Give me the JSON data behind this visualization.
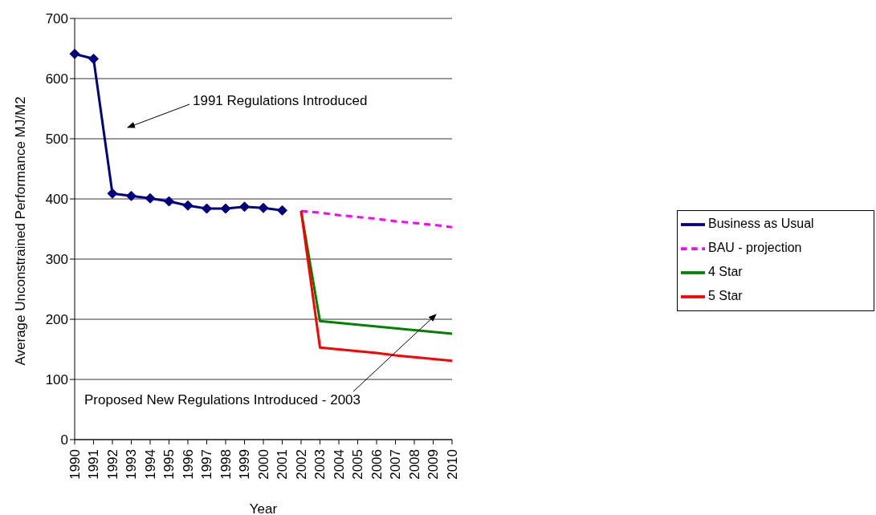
{
  "chart_data": {
    "type": "line",
    "xlabel": "Year",
    "ylabel": "Average Unconstrained Performance MJ/M2",
    "categories": [
      "1990",
      "1991",
      "1992",
      "1993",
      "1994",
      "1995",
      "1996",
      "1997",
      "1998",
      "1999",
      "2000",
      "2001",
      "2002",
      "2003",
      "2004",
      "2005",
      "2006",
      "2007",
      "2008",
      "2009",
      "2010"
    ],
    "series": [
      {
        "name": "Business as Usual",
        "color": "#000080",
        "marker": "diamond",
        "line_style": "solid",
        "values": [
          641,
          633,
          409,
          405,
          401,
          396,
          389,
          384,
          384,
          387,
          385,
          381,
          null,
          null,
          null,
          null,
          null,
          null,
          null,
          null,
          null
        ]
      },
      {
        "name": "BAU - projection",
        "color": "#ff00ff",
        "marker": "none",
        "line_style": "dashed",
        "values": [
          null,
          null,
          null,
          null,
          null,
          null,
          null,
          null,
          null,
          null,
          null,
          null,
          380,
          377,
          373,
          370,
          367,
          363,
          360,
          357,
          353
        ]
      },
      {
        "name": "4 Star",
        "color": "#008000",
        "marker": "none",
        "line_style": "solid",
        "values": [
          null,
          null,
          null,
          null,
          null,
          null,
          null,
          null,
          null,
          null,
          null,
          null,
          380,
          197,
          194,
          191,
          188,
          185,
          182,
          179,
          176
        ]
      },
      {
        "name": "5 Star",
        "color": "#ff0000",
        "marker": "none",
        "line_style": "solid",
        "values": [
          null,
          null,
          null,
          null,
          null,
          null,
          null,
          null,
          null,
          null,
          null,
          null,
          380,
          153,
          150,
          147,
          144,
          140,
          137,
          134,
          131
        ]
      }
    ],
    "ylim": [
      0,
      700
    ],
    "yticks": [
      0,
      100,
      200,
      300,
      400,
      500,
      600,
      700
    ],
    "grid": "y",
    "legend": "right",
    "annotations": [
      "1991 Regulations Introduced",
      "Proposed New Regulations Introduced - 2003"
    ]
  }
}
